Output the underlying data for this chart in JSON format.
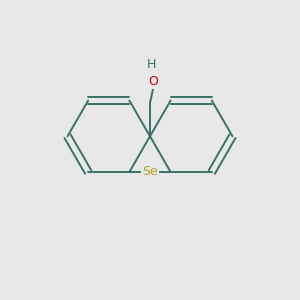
{
  "background_color": "#e8e8e8",
  "bond_color": "#3a7068",
  "Se_color": "#b8a020",
  "O_color": "#cc0000",
  "H_color": "#3a7068",
  "line_width": 1.4,
  "figsize": [
    3.0,
    3.0
  ],
  "dpi": 100,
  "se_label": "Se",
  "o_label": "O",
  "h_label": "H"
}
